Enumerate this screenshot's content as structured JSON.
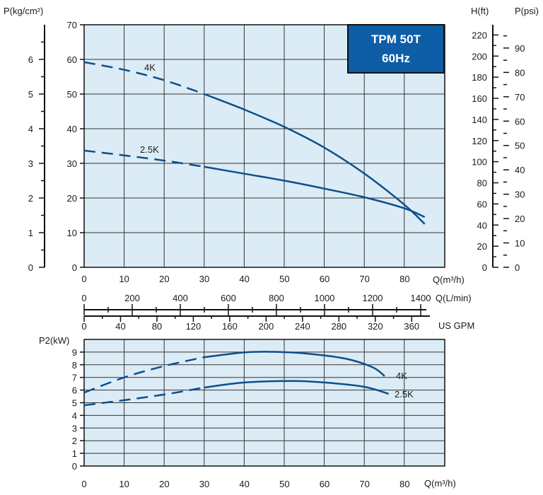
{
  "chart_data": [
    {
      "type": "line",
      "name_printed": "",
      "badge": [
        "TPM 50T",
        "60Hz"
      ],
      "x_axis": {
        "label": "Q(m³/h)",
        "ticks": [
          0,
          10,
          20,
          30,
          40,
          50,
          60,
          70,
          80
        ],
        "range": [
          0,
          90
        ]
      },
      "secondary_x_axes": [
        {
          "label": "Q(L/min)",
          "ticks": [
            0,
            200,
            400,
            600,
            800,
            1000,
            1200,
            1400
          ],
          "m3h_per_unit": 0.06
        },
        {
          "label": "US GPM",
          "ticks": [
            0,
            40,
            80,
            120,
            160,
            200,
            240,
            280,
            320,
            360
          ],
          "m3h_per_unit": 0.2271
        }
      ],
      "y_axes": {
        "head_m": {
          "ticks": [
            0,
            10,
            20,
            30,
            40,
            50,
            60,
            70
          ],
          "range": [
            0,
            70
          ]
        },
        "pressure_kgcm2": {
          "label": "P(kg/cm²)",
          "ticks": [
            0,
            1,
            2,
            3,
            4,
            5,
            6
          ],
          "m_per_unit": 10
        },
        "head_ft": {
          "label": "H(ft)",
          "ticks": [
            0,
            20,
            40,
            60,
            80,
            100,
            120,
            140,
            160,
            180,
            200,
            220
          ],
          "m_per_unit": 0.3048
        },
        "pressure_psi": {
          "label": "P(psi)",
          "ticks": [
            0,
            10,
            20,
            30,
            40,
            50,
            60,
            70,
            80,
            90
          ],
          "m_per_unit": 0.7031
        }
      },
      "grid": true,
      "series": [
        {
          "name": "4K",
          "dashed_until_x": 30,
          "x": [
            0,
            10,
            20,
            30,
            40,
            50,
            60,
            70,
            80,
            85
          ],
          "y": [
            59.2,
            57,
            54,
            50,
            45.5,
            40.5,
            34.5,
            27,
            18,
            12.5
          ]
        },
        {
          "name": "2.5K",
          "dashed_until_x": 30,
          "x": [
            0,
            10,
            20,
            30,
            40,
            50,
            60,
            70,
            80,
            85
          ],
          "y": [
            33.7,
            32.3,
            30.8,
            29,
            27,
            25,
            22.7,
            20.2,
            17,
            14.5
          ]
        }
      ]
    },
    {
      "type": "line",
      "x_axis": {
        "label": "Q(m³/h)",
        "ticks": [
          0,
          10,
          20,
          30,
          40,
          50,
          60,
          70,
          80
        ],
        "range": [
          0,
          90
        ]
      },
      "y_axis": {
        "label": "P2(kW)",
        "ticks": [
          0,
          1,
          2,
          3,
          4,
          5,
          6,
          7,
          8,
          9
        ],
        "range": [
          0,
          10
        ]
      },
      "grid": true,
      "series": [
        {
          "name": "4K",
          "dashed_until_x": 30,
          "x": [
            0,
            10,
            20,
            30,
            40,
            47,
            55,
            65,
            72,
            75
          ],
          "y": [
            5.8,
            7,
            7.9,
            8.6,
            8.97,
            9.02,
            8.9,
            8.5,
            7.8,
            7.1
          ]
        },
        {
          "name": "2.5K",
          "dashed_until_x": 30,
          "x": [
            0,
            10,
            20,
            30,
            40,
            52,
            60,
            70,
            76
          ],
          "y": [
            4.8,
            5.2,
            5.65,
            6.2,
            6.6,
            6.72,
            6.6,
            6.25,
            5.7
          ]
        }
      ]
    }
  ]
}
